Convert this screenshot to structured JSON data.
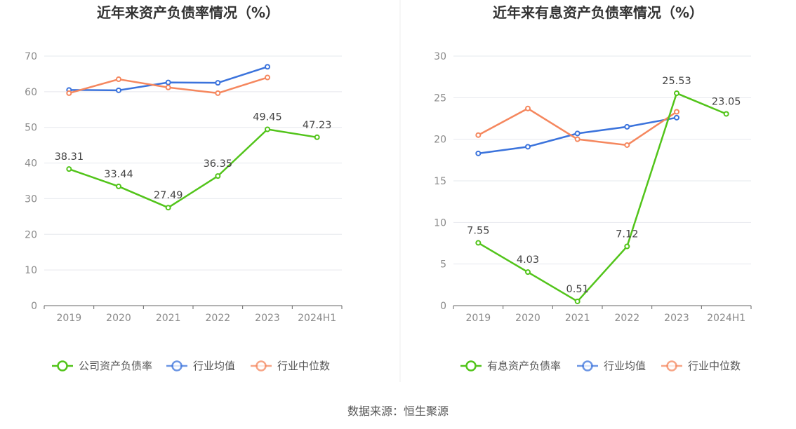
{
  "source_text": "数据来源：恒生聚源",
  "colors": {
    "green": "#52c41a",
    "blue": "#3b73dc",
    "orange": "#f5875e",
    "grid": "#e6e8ee",
    "axis": "#666666"
  },
  "chart_data": [
    {
      "type": "line",
      "title": "近年来资产负债率情况（%）",
      "x": [
        "2019",
        "2020",
        "2021",
        "2022",
        "2023",
        "2024H1"
      ],
      "ylim": [
        0,
        70
      ],
      "yticks": [
        0,
        10,
        20,
        30,
        40,
        50,
        60,
        70
      ],
      "grid": true,
      "legend_position": "bottom",
      "series": [
        {
          "name": "公司资产负债率",
          "color": "#52c41a",
          "values": [
            38.31,
            33.44,
            27.49,
            36.35,
            49.45,
            47.23
          ],
          "labels": [
            "38.31",
            "33.44",
            "27.49",
            "36.35",
            "49.45",
            "47.23"
          ]
        },
        {
          "name": "行业均值",
          "color": "#3b73dc",
          "values": [
            60.5,
            60.4,
            62.6,
            62.5,
            67.0,
            null
          ]
        },
        {
          "name": "行业中位数",
          "color": "#f5875e",
          "values": [
            59.6,
            63.5,
            61.2,
            59.6,
            64.0,
            null
          ]
        }
      ]
    },
    {
      "type": "line",
      "title": "近年来有息资产负债率情况（%）",
      "x": [
        "2019",
        "2020",
        "2021",
        "2022",
        "2023",
        "2024H1"
      ],
      "ylim": [
        0,
        30
      ],
      "yticks": [
        0,
        5,
        10,
        15,
        20,
        25,
        30
      ],
      "grid": true,
      "legend_position": "bottom",
      "series": [
        {
          "name": "有息资产负债率",
          "color": "#52c41a",
          "values": [
            7.55,
            4.03,
            0.51,
            7.12,
            25.53,
            23.05
          ],
          "labels": [
            "7.55",
            "4.03",
            "0.51",
            "7.12",
            "25.53",
            "23.05"
          ]
        },
        {
          "name": "行业均值",
          "color": "#3b73dc",
          "values": [
            18.3,
            19.1,
            20.7,
            21.5,
            22.6,
            null
          ]
        },
        {
          "name": "行业中位数",
          "color": "#f5875e",
          "values": [
            20.5,
            23.7,
            20.0,
            19.3,
            23.3,
            null
          ]
        }
      ]
    }
  ]
}
